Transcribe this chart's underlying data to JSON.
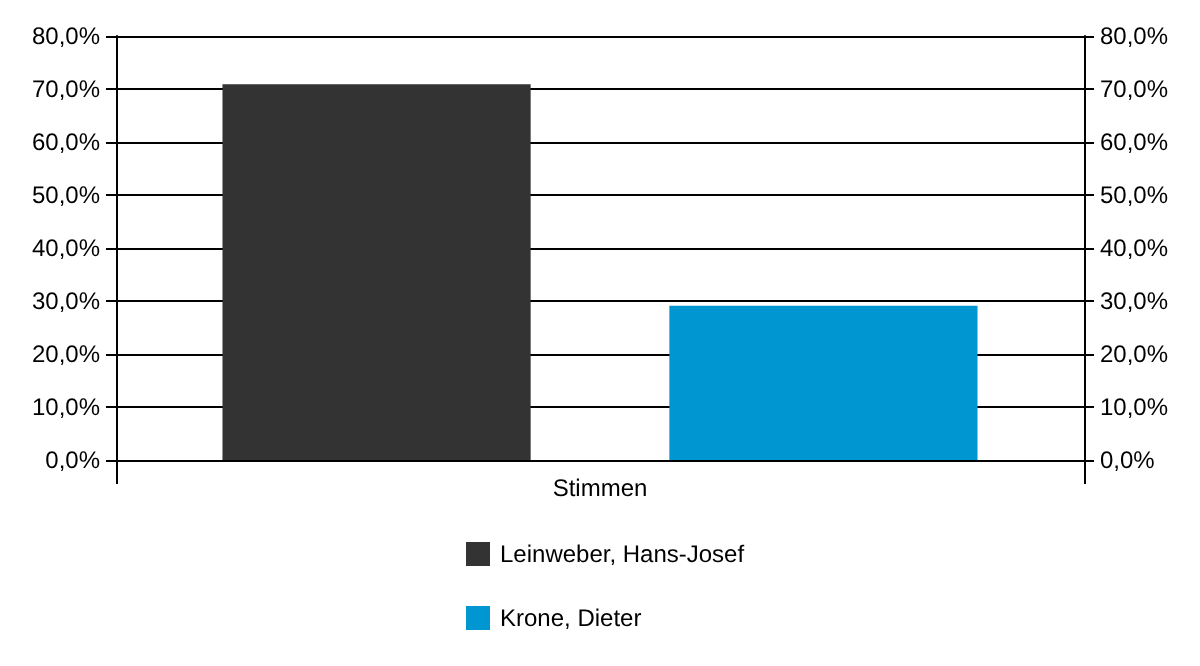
{
  "chart_data": {
    "type": "bar",
    "categories": [
      "Stimmen"
    ],
    "series": [
      {
        "name": "Leinweber, Hans-Josef",
        "color": "#333333",
        "values": [
          70.9
        ]
      },
      {
        "name": "Krone, Dieter",
        "color": "#0096d2",
        "values": [
          29.1
        ]
      }
    ],
    "ylim": [
      0,
      80
    ],
    "yticks": [
      {
        "value": 0,
        "label": "0,0%"
      },
      {
        "value": 10,
        "label": "10,0%"
      },
      {
        "value": 20,
        "label": "20,0%"
      },
      {
        "value": 30,
        "label": "30,0%"
      },
      {
        "value": 40,
        "label": "40,0%"
      },
      {
        "value": 50,
        "label": "50,0%"
      },
      {
        "value": 60,
        "label": "60,0%"
      },
      {
        "value": 70,
        "label": "70,0%"
      },
      {
        "value": 80,
        "label": "80,0%"
      }
    ],
    "grid": "y",
    "legend": "bottom"
  }
}
